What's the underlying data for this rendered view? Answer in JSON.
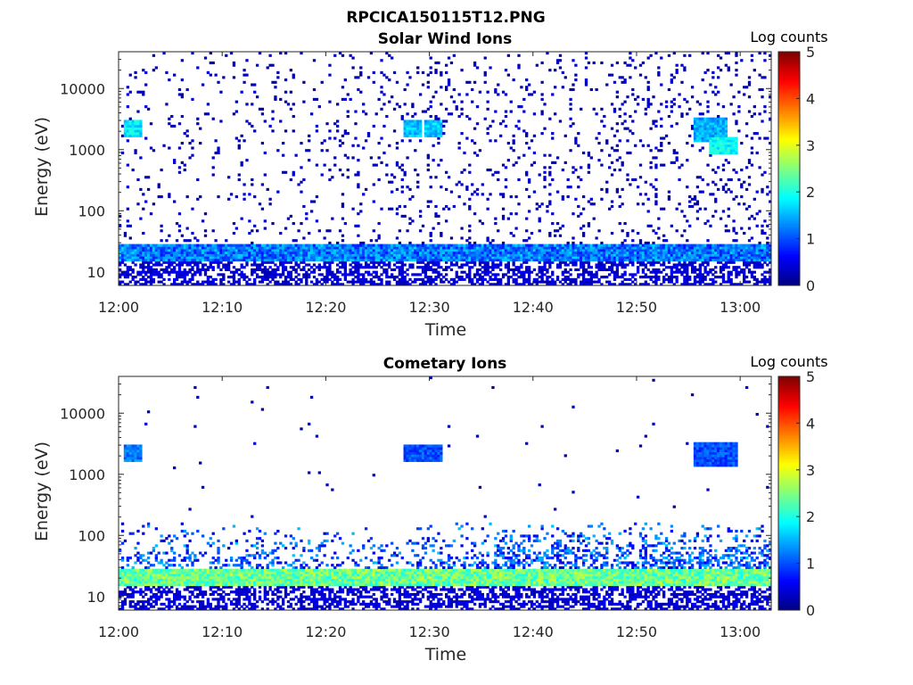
{
  "figure": {
    "title": "RPCICA150115T12.PNG"
  },
  "chart_data": [
    {
      "type": "heatmap",
      "title": "Solar Wind Ions",
      "xlabel": "Time",
      "ylabel": "Energy (eV)",
      "x_tick_labels": [
        "12:00",
        "12:10",
        "12:20",
        "12:30",
        "12:40",
        "12:50",
        "13:00"
      ],
      "x_ticks_minutes": [
        0,
        10,
        20,
        30,
        40,
        50,
        60
      ],
      "xlim_minutes": [
        0,
        63
      ],
      "y_scale": "log",
      "y_tick_labels": [
        "10",
        "100",
        "1000",
        "10000"
      ],
      "y_ticks": [
        10,
        100,
        1000,
        10000
      ],
      "ylim": [
        6,
        40000
      ],
      "colorbar": {
        "label": "Log counts",
        "ticks": [
          "0",
          "1",
          "2",
          "3",
          "4",
          "5"
        ],
        "range": [
          0,
          5
        ],
        "colormap": "jet"
      },
      "low_energy_band": {
        "energy_low": 15,
        "energy_high": 28,
        "typical_log_counts": 1.2
      },
      "features": [
        {
          "t_start": 0.5,
          "t_end": 2.0,
          "e_low": 1500,
          "e_high": 3000,
          "log_counts": 1.8
        },
        {
          "t_start": 27.5,
          "t_end": 29.0,
          "e_low": 1500,
          "e_high": 3000,
          "log_counts": 1.6
        },
        {
          "t_start": 29.5,
          "t_end": 31.0,
          "e_low": 1500,
          "e_high": 3000,
          "log_counts": 1.6
        },
        {
          "t_start": 55.5,
          "t_end": 58.5,
          "e_low": 1300,
          "e_high": 3200,
          "log_counts": 1.5
        },
        {
          "t_start": 57.0,
          "t_end": 59.5,
          "e_low": 800,
          "e_high": 1500,
          "log_counts": 1.9
        }
      ]
    },
    {
      "type": "heatmap",
      "title": "Cometary Ions",
      "xlabel": "Time",
      "ylabel": "Energy (eV)",
      "x_tick_labels": [
        "12:00",
        "12:10",
        "12:20",
        "12:30",
        "12:40",
        "12:50",
        "13:00"
      ],
      "x_ticks_minutes": [
        0,
        10,
        20,
        30,
        40,
        50,
        60
      ],
      "xlim_minutes": [
        0,
        63
      ],
      "y_scale": "log",
      "y_tick_labels": [
        "10",
        "100",
        "1000",
        "10000"
      ],
      "y_ticks": [
        10,
        100,
        1000,
        10000
      ],
      "ylim": [
        6,
        40000
      ],
      "colorbar": {
        "label": "Log counts",
        "ticks": [
          "0",
          "1",
          "2",
          "3",
          "4",
          "5"
        ],
        "range": [
          0,
          5
        ],
        "colormap": "jet"
      },
      "low_energy_band": {
        "energy_low": 15,
        "energy_high": 28,
        "typical_log_counts": 2.4
      },
      "features": [
        {
          "t_start": 0.5,
          "t_end": 2.0,
          "e_low": 1500,
          "e_high": 3000,
          "log_counts": 1.2
        },
        {
          "t_start": 27.5,
          "t_end": 31.0,
          "e_low": 1500,
          "e_high": 3000,
          "log_counts": 1.0
        },
        {
          "t_start": 55.5,
          "t_end": 59.5,
          "e_low": 1300,
          "e_high": 3200,
          "log_counts": 1.0
        }
      ]
    }
  ]
}
